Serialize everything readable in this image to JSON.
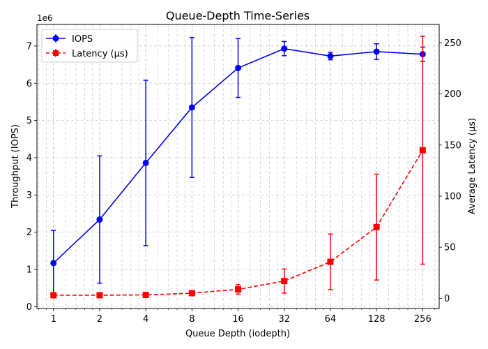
{
  "chart_data": {
    "type": "line",
    "title": "Queue-Depth Time-Series",
    "xlabel": "Queue Depth (iodepth)",
    "ylabel_left": "Throughput (IOPS)",
    "ylabel_right": "Average Latency (µs)",
    "x_scale": "log2",
    "left_offset_label": "1e6",
    "categories": [
      "1",
      "2",
      "4",
      "8",
      "16",
      "32",
      "64",
      "128",
      "256"
    ],
    "x": [
      1,
      2,
      4,
      8,
      16,
      32,
      64,
      128,
      256
    ],
    "xlim": [
      0.78,
      328
    ],
    "ylim_left": [
      -0.05,
      7.58
    ],
    "ylim_right": [
      -10,
      268
    ],
    "yticks_left": [
      0,
      1,
      2,
      3,
      4,
      5,
      6,
      7
    ],
    "yticks_right": [
      0,
      50,
      100,
      150,
      200,
      250
    ],
    "grid": true,
    "legend_position": "upper left",
    "series": [
      {
        "name": "IOPS",
        "axis": "left",
        "color": "#0000ff",
        "marker": "circle",
        "linestyle": "solid",
        "values": [
          1.17,
          2.34,
          3.86,
          5.35,
          6.41,
          6.93,
          6.73,
          6.85,
          6.78
        ],
        "errors": [
          0.88,
          1.71,
          2.22,
          1.88,
          0.79,
          0.19,
          0.1,
          0.21,
          0.19
        ]
      },
      {
        "name": "Latency (µs)",
        "axis": "right",
        "color": "#ff0000",
        "marker": "square",
        "linestyle": "dashed",
        "values": [
          3.0,
          3.0,
          3.3,
          5.0,
          8.7,
          16.9,
          35.7,
          69.7,
          144.9
        ],
        "errors": [
          0.8,
          0.8,
          0.8,
          1.0,
          4.6,
          11.8,
          27.2,
          51.8,
          111.5
        ]
      }
    ]
  }
}
